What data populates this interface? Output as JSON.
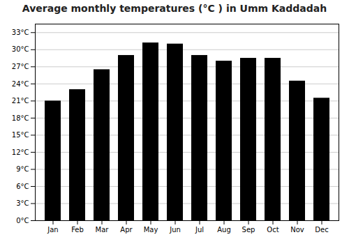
{
  "chart_data": {
    "type": "bar",
    "title": "Average monthly temperatures (°C ) in Umm Kaddadah",
    "categories": [
      "Jan",
      "Feb",
      "Mar",
      "Apr",
      "May",
      "Jun",
      "Jul",
      "Aug",
      "Sep",
      "Oct",
      "Nov",
      "Dec"
    ],
    "values": [
      21.0,
      23.0,
      26.5,
      29.0,
      31.2,
      31.0,
      29.0,
      28.0,
      28.5,
      28.5,
      24.5,
      21.5
    ],
    "ylim": [
      0,
      34.5
    ],
    "yticks": [
      {
        "value": 0,
        "label": "0°C"
      },
      {
        "value": 3,
        "label": "3°C"
      },
      {
        "value": 6,
        "label": "6°C"
      },
      {
        "value": 9,
        "label": "9°C"
      },
      {
        "value": 12,
        "label": "12°C"
      },
      {
        "value": 15,
        "label": "15°C"
      },
      {
        "value": 18,
        "label": "18°C"
      },
      {
        "value": 21,
        "label": "21°C"
      },
      {
        "value": 24,
        "label": "24°C"
      },
      {
        "value": 27,
        "label": "27°C"
      },
      {
        "value": 30,
        "label": "30°C"
      },
      {
        "value": 33,
        "label": "33°C"
      }
    ],
    "grid": true
  }
}
